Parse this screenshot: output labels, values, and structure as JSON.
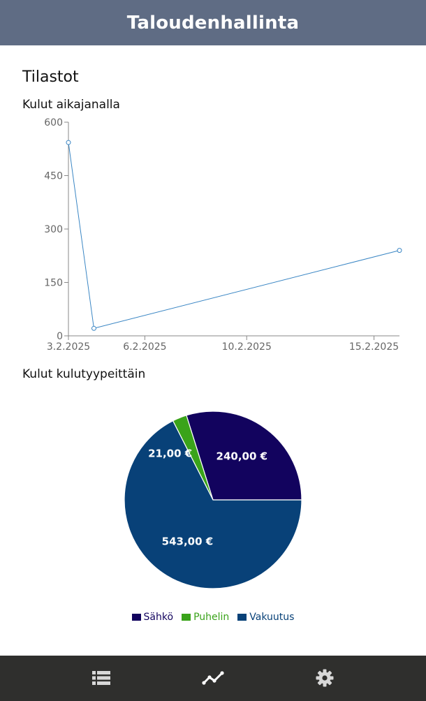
{
  "app": {
    "title": "Taloudenhallinta"
  },
  "page": {
    "title": "Tilastot"
  },
  "timeline": {
    "title": "Kulut aikajanalla"
  },
  "by_type": {
    "title": "Kulut kulutyypeittäin"
  },
  "chart_data": [
    {
      "type": "line",
      "title": "Kulut aikajanalla",
      "x": [
        "3.2.2025",
        "4.2.2025",
        "16.2.2025"
      ],
      "values": [
        543,
        21,
        240
      ],
      "x_ticks": [
        "3.2.2025",
        "6.2.2025",
        "10.2.2025",
        "15.2.2025"
      ],
      "y_ticks": [
        0,
        150,
        300,
        450,
        600
      ],
      "ylim": [
        0,
        600
      ],
      "color": "#3a86c4",
      "grid": false
    },
    {
      "type": "pie",
      "title": "Kulut kulutyypeittäin",
      "slices": [
        {
          "name": "Sähkö",
          "value": 240,
          "label": "240,00 €",
          "color": "#12035e"
        },
        {
          "name": "Puhelin",
          "value": 21,
          "label": "21,00 €",
          "color": "#3aa31a"
        },
        {
          "name": "Vakuutus",
          "value": 543,
          "label": "543,00 €",
          "color": "#084178"
        }
      ],
      "legend": "bottom"
    }
  ],
  "nav": {
    "items": [
      {
        "icon": "list-icon"
      },
      {
        "icon": "chart-line-icon",
        "active": true
      },
      {
        "icon": "gear-icon"
      }
    ]
  }
}
